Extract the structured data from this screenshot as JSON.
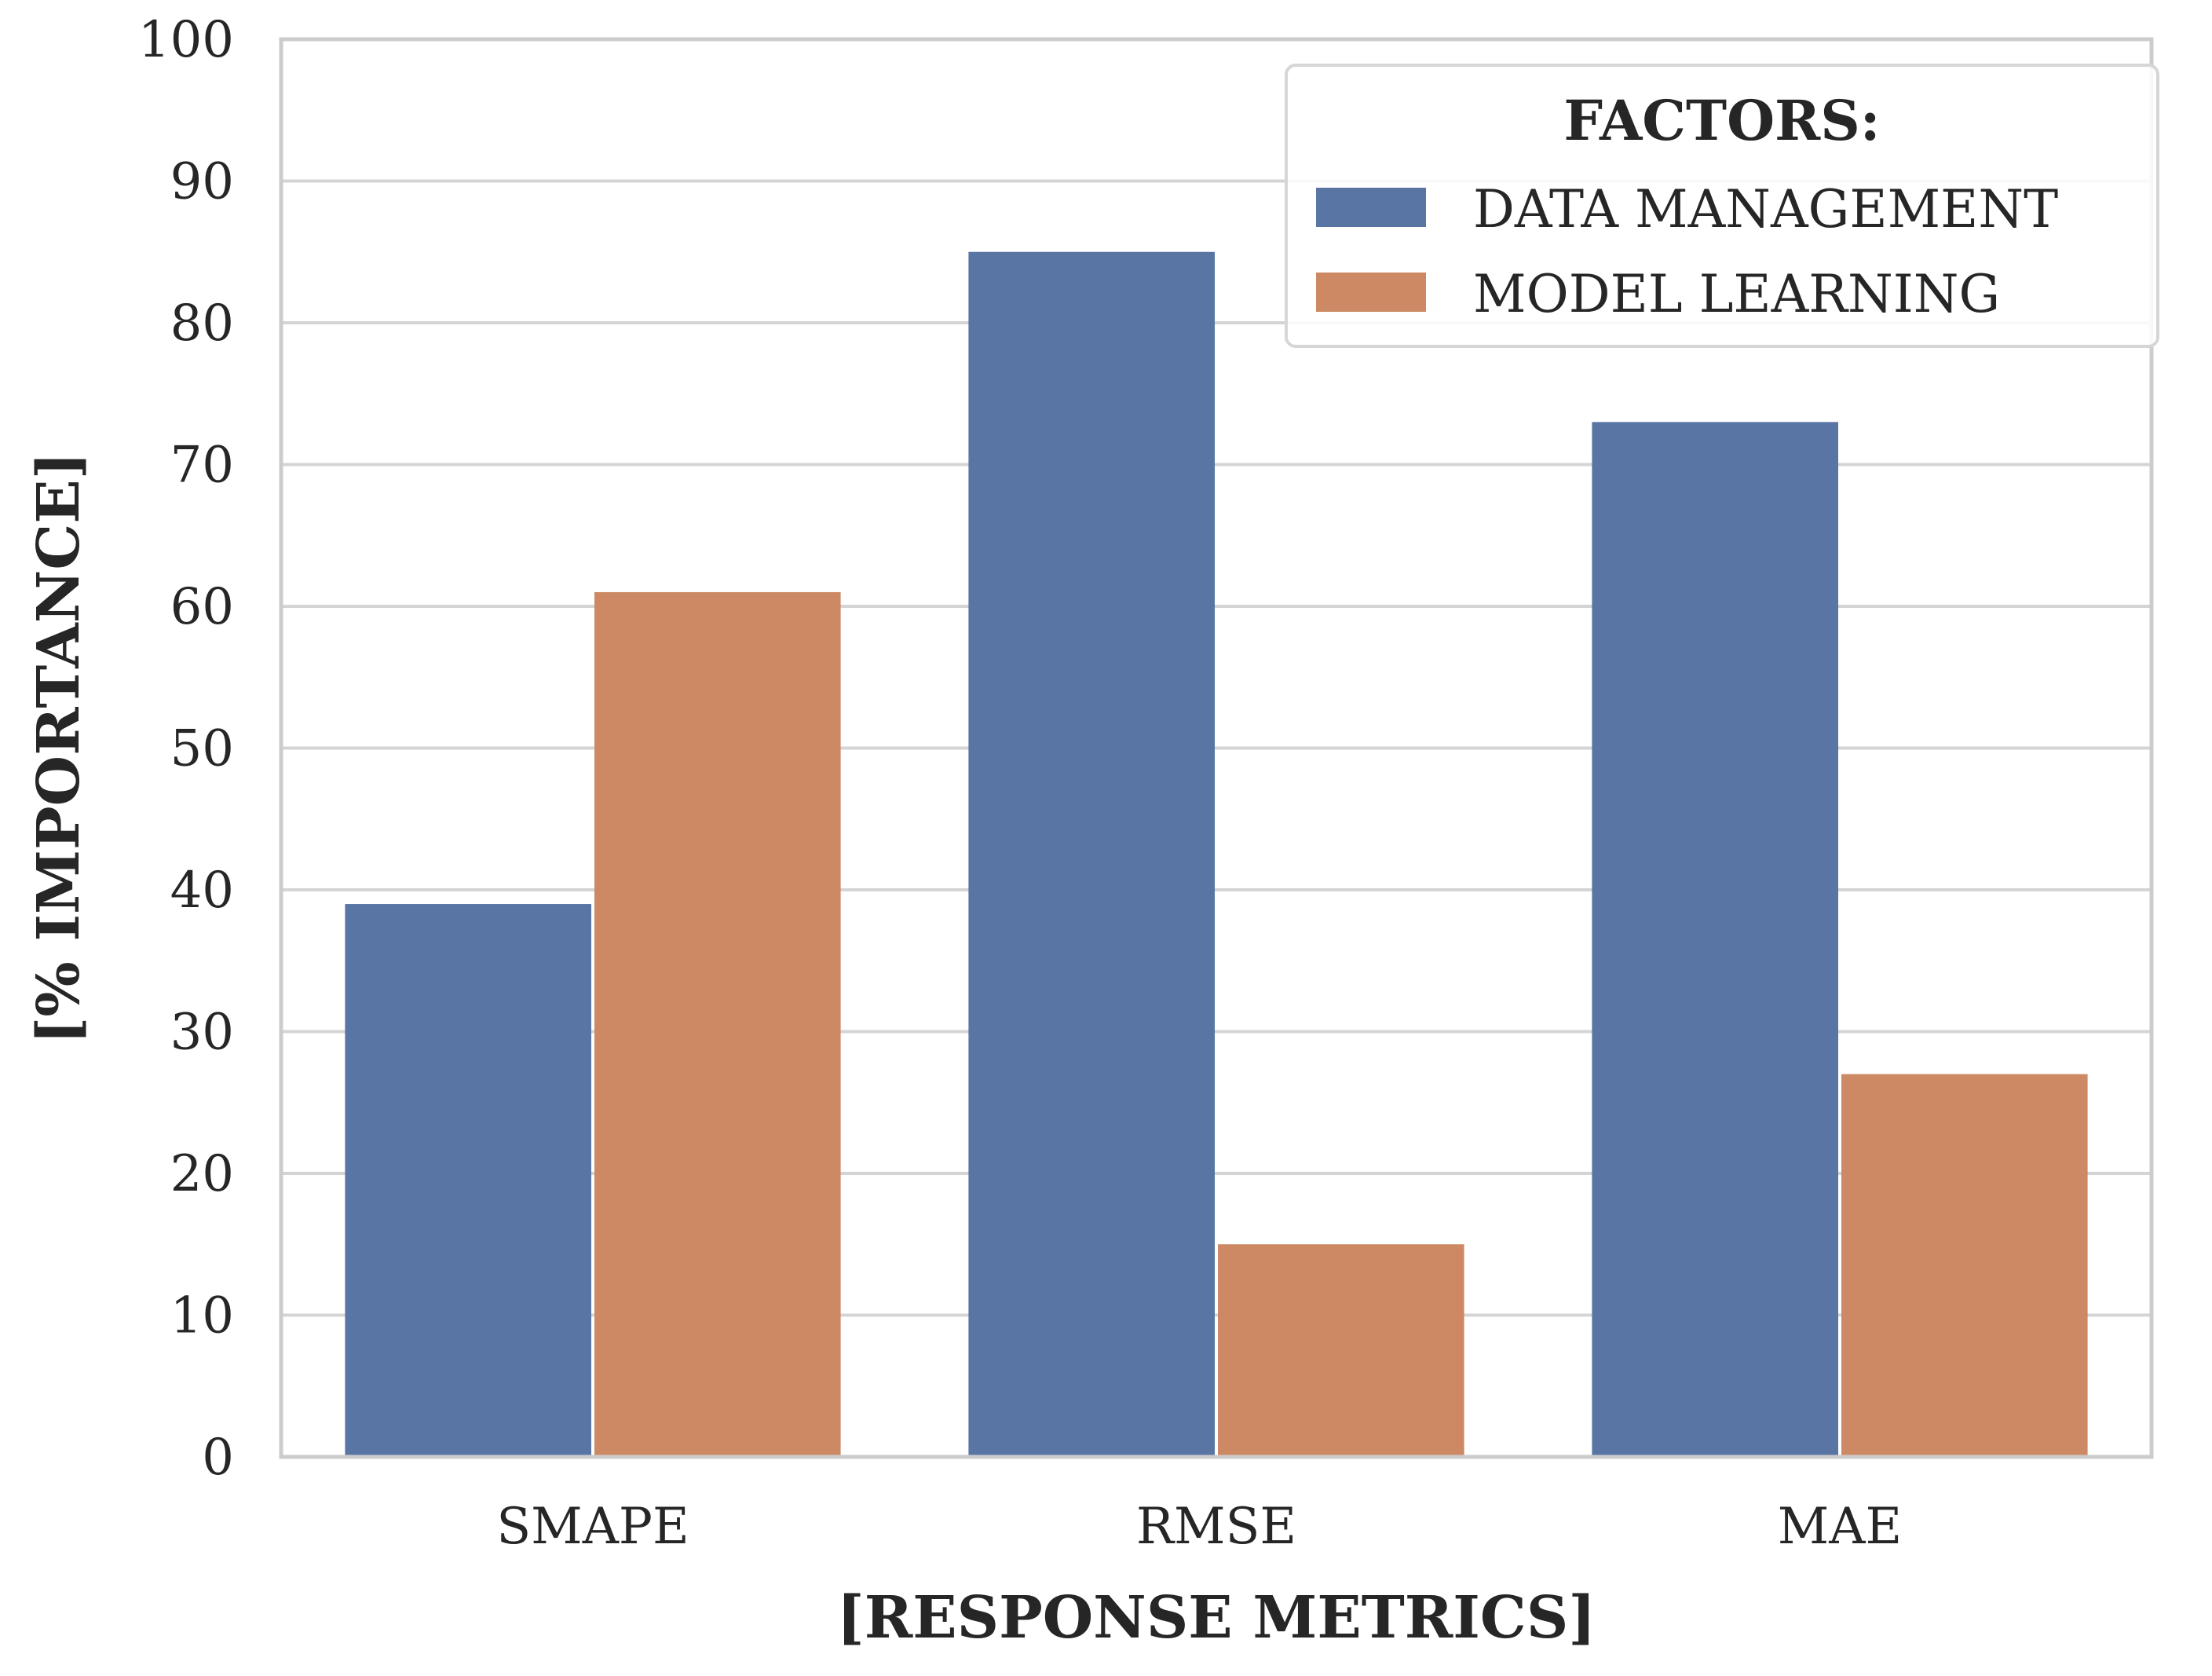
{
  "chart_data": {
    "type": "bar",
    "title": "",
    "xlabel": "[RESPONSE METRICS]",
    "ylabel": "[% IMPORTANCE]",
    "ylim": [
      0,
      100
    ],
    "yticks": [
      0,
      10,
      20,
      30,
      40,
      50,
      60,
      70,
      80,
      90,
      100
    ],
    "grid": true,
    "categories": [
      "SMAPE",
      "RMSE",
      "MAE"
    ],
    "series": [
      {
        "name": "DATA MANAGEMENT",
        "color": "#5975a4",
        "values": [
          39,
          85,
          73
        ]
      },
      {
        "name": "MODEL LEARNING",
        "color": "#cc8963",
        "values": [
          61,
          15,
          27
        ]
      }
    ],
    "legend": {
      "title": "FACTORS:",
      "position": "top-right"
    }
  }
}
